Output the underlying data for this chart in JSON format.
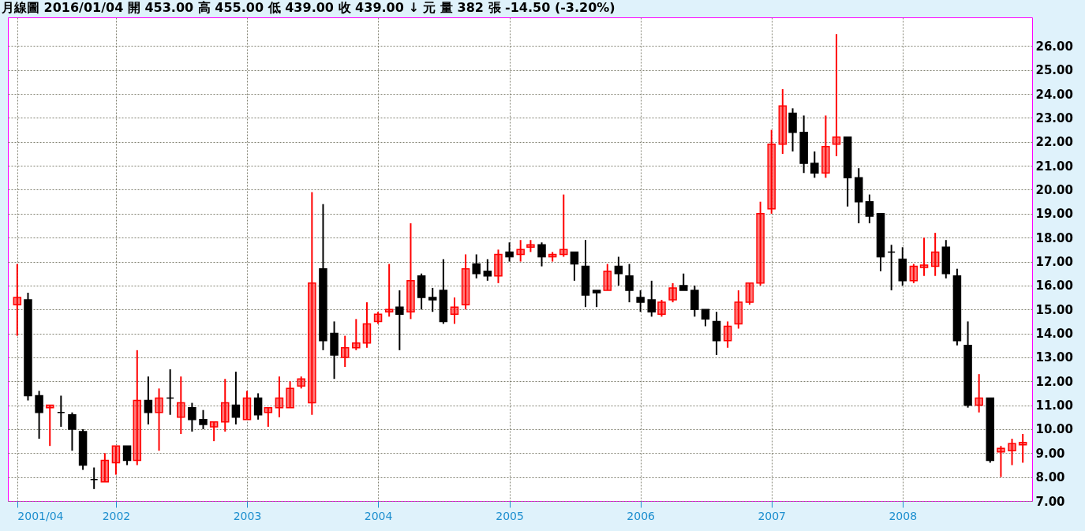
{
  "chart_data": {
    "type": "candlestick",
    "title": "月線圖  2016/01/04  開 453.00  高 455.00  低 439.00  收 439.00 ↓ 元  量 382 張  -14.50 (-3.20%)",
    "x": [
      "2001-04",
      "2001-05",
      "2001-06",
      "2001-07",
      "2001-08",
      "2001-09",
      "2001-10",
      "2001-11",
      "2001-12",
      "2002-01",
      "2002-02",
      "2002-03",
      "2002-04",
      "2002-05",
      "2002-06",
      "2002-07",
      "2002-08",
      "2002-09",
      "2002-10",
      "2002-11",
      "2002-12",
      "2003-01",
      "2003-02",
      "2003-03",
      "2003-04",
      "2003-05",
      "2003-06",
      "2003-07",
      "2003-08",
      "2003-09",
      "2003-10",
      "2003-11",
      "2003-12",
      "2004-01",
      "2004-02",
      "2004-03",
      "2004-04",
      "2004-05",
      "2004-06",
      "2004-07",
      "2004-08",
      "2004-09",
      "2004-10",
      "2004-11",
      "2004-12",
      "2005-01",
      "2005-02",
      "2005-03",
      "2005-04",
      "2005-05",
      "2005-06",
      "2005-07",
      "2005-08",
      "2005-09",
      "2005-10",
      "2005-11",
      "2005-12",
      "2006-01",
      "2006-02",
      "2006-03",
      "2006-04",
      "2006-05",
      "2006-06",
      "2006-07",
      "2006-08",
      "2006-09",
      "2006-10",
      "2006-11",
      "2006-12",
      "2007-01",
      "2007-02",
      "2007-03",
      "2007-04",
      "2007-05",
      "2007-06",
      "2007-07",
      "2007-08",
      "2007-09",
      "2007-10",
      "2007-11",
      "2007-12",
      "2008-01",
      "2008-02",
      "2008-03",
      "2008-04",
      "2008-05",
      "2008-06",
      "2008-07",
      "2008-08",
      "2008-09",
      "2008-10",
      "2008-11",
      "2008-12"
    ],
    "ohlc": [
      [
        15.2,
        16.9,
        13.9,
        15.5
      ],
      [
        15.4,
        15.7,
        11.2,
        11.4
      ],
      [
        11.4,
        11.6,
        9.6,
        10.7
      ],
      [
        10.9,
        11.0,
        9.3,
        11.0
      ],
      [
        10.7,
        11.4,
        10.1,
        10.7
      ],
      [
        10.6,
        10.7,
        9.1,
        10.0
      ],
      [
        9.9,
        10.0,
        8.3,
        8.5
      ],
      [
        7.9,
        8.4,
        7.5,
        7.9
      ],
      [
        7.8,
        9.0,
        7.8,
        8.7
      ],
      [
        8.6,
        9.3,
        8.1,
        9.3
      ],
      [
        9.3,
        9.3,
        8.5,
        8.7
      ],
      [
        8.7,
        13.3,
        8.5,
        11.2
      ],
      [
        11.2,
        12.2,
        10.2,
        10.7
      ],
      [
        10.7,
        11.7,
        9.1,
        11.3
      ],
      [
        11.3,
        12.5,
        10.6,
        11.3
      ],
      [
        10.5,
        12.2,
        9.8,
        11.1
      ],
      [
        10.9,
        11.1,
        9.9,
        10.4
      ],
      [
        10.4,
        10.8,
        10.0,
        10.2
      ],
      [
        10.1,
        10.3,
        9.5,
        10.3
      ],
      [
        10.3,
        12.1,
        9.9,
        11.1
      ],
      [
        11.0,
        12.4,
        10.2,
        10.5
      ],
      [
        10.4,
        11.6,
        10.4,
        11.3
      ],
      [
        11.3,
        11.5,
        10.4,
        10.6
      ],
      [
        10.7,
        10.9,
        10.1,
        10.9
      ],
      [
        10.9,
        12.2,
        10.5,
        11.3
      ],
      [
        10.9,
        12.0,
        10.9,
        11.7
      ],
      [
        11.8,
        12.2,
        11.7,
        12.1
      ],
      [
        11.1,
        19.9,
        10.6,
        16.1
      ],
      [
        16.7,
        19.4,
        13.3,
        13.7
      ],
      [
        14.0,
        14.5,
        12.1,
        13.1
      ],
      [
        13.0,
        13.9,
        12.6,
        13.4
      ],
      [
        13.4,
        14.6,
        13.3,
        13.6
      ],
      [
        13.6,
        15.3,
        13.4,
        14.4
      ],
      [
        14.5,
        14.9,
        14.4,
        14.8
      ],
      [
        14.9,
        16.9,
        14.7,
        15.0
      ],
      [
        15.1,
        15.8,
        13.3,
        14.8
      ],
      [
        14.9,
        18.6,
        14.6,
        16.2
      ],
      [
        16.4,
        16.5,
        15.0,
        15.5
      ],
      [
        15.5,
        15.9,
        14.9,
        15.4
      ],
      [
        15.8,
        17.1,
        14.4,
        14.5
      ],
      [
        14.8,
        15.5,
        14.4,
        15.1
      ],
      [
        15.2,
        17.3,
        15.0,
        16.7
      ],
      [
        16.9,
        17.3,
        16.3,
        16.5
      ],
      [
        16.6,
        17.1,
        16.2,
        16.4
      ],
      [
        16.4,
        17.5,
        16.1,
        17.3
      ],
      [
        17.4,
        17.8,
        17.0,
        17.2
      ],
      [
        17.3,
        17.9,
        17.0,
        17.5
      ],
      [
        17.6,
        17.9,
        17.4,
        17.7
      ],
      [
        17.7,
        17.8,
        16.8,
        17.2
      ],
      [
        17.2,
        17.4,
        17.0,
        17.3
      ],
      [
        17.3,
        19.8,
        17.2,
        17.5
      ],
      [
        17.4,
        17.4,
        16.2,
        16.9
      ],
      [
        16.8,
        17.9,
        15.1,
        15.6
      ],
      [
        15.8,
        15.8,
        15.1,
        15.7
      ],
      [
        15.8,
        16.9,
        15.8,
        16.6
      ],
      [
        16.8,
        17.2,
        16.0,
        16.5
      ],
      [
        16.4,
        16.9,
        15.3,
        15.8
      ],
      [
        15.5,
        15.8,
        14.9,
        15.3
      ],
      [
        15.4,
        16.2,
        14.7,
        14.9
      ],
      [
        14.8,
        15.4,
        14.7,
        15.3
      ],
      [
        15.4,
        16.1,
        15.3,
        15.9
      ],
      [
        16.0,
        16.5,
        15.8,
        15.8
      ],
      [
        15.8,
        16.0,
        14.7,
        15.0
      ],
      [
        15.0,
        15.0,
        14.3,
        14.6
      ],
      [
        14.5,
        14.9,
        13.1,
        13.7
      ],
      [
        13.7,
        14.5,
        13.4,
        14.3
      ],
      [
        14.4,
        15.8,
        14.2,
        15.3
      ],
      [
        15.3,
        16.1,
        15.2,
        16.1
      ],
      [
        16.1,
        19.5,
        16.0,
        19.0
      ],
      [
        19.2,
        22.5,
        19.0,
        21.9
      ],
      [
        21.9,
        24.2,
        21.5,
        23.5
      ],
      [
        23.2,
        23.4,
        21.6,
        22.4
      ],
      [
        22.4,
        23.1,
        20.7,
        21.1
      ],
      [
        21.1,
        21.6,
        20.5,
        20.7
      ],
      [
        20.7,
        23.1,
        20.5,
        21.8
      ],
      [
        21.9,
        26.5,
        21.4,
        22.2
      ],
      [
        22.2,
        22.2,
        19.3,
        20.5
      ],
      [
        20.5,
        20.9,
        18.6,
        19.5
      ],
      [
        19.5,
        19.8,
        18.6,
        18.9
      ],
      [
        19.0,
        19.0,
        16.6,
        17.2
      ],
      [
        17.4,
        17.7,
        15.8,
        17.4
      ],
      [
        17.1,
        17.6,
        16.0,
        16.2
      ],
      [
        16.2,
        16.9,
        16.1,
        16.8
      ],
      [
        16.75,
        18.0,
        16.4,
        16.85
      ],
      [
        16.8,
        18.2,
        16.4,
        17.4
      ],
      [
        17.6,
        17.9,
        16.3,
        16.5
      ],
      [
        16.4,
        16.7,
        13.5,
        13.7
      ],
      [
        13.5,
        14.5,
        10.9,
        11.0
      ],
      [
        11.0,
        12.3,
        10.7,
        11.3
      ],
      [
        11.3,
        11.3,
        8.6,
        8.7
      ],
      [
        9.05,
        9.3,
        8.0,
        9.2
      ],
      [
        9.1,
        9.6,
        8.5,
        9.4
      ],
      [
        9.35,
        9.8,
        8.6,
        9.45
      ]
    ],
    "colors": [
      "#ff0000",
      "#000000",
      "#000000",
      "#ff0000",
      "#000000",
      "#000000",
      "#000000",
      "#000000",
      "#ff0000",
      "#ff0000",
      "#000000",
      "#ff0000",
      "#000000",
      "#ff0000",
      "#000000",
      "#ff0000",
      "#000000",
      "#000000",
      "#ff0000",
      "#ff0000",
      "#000000",
      "#ff0000",
      "#000000",
      "#ff0000",
      "#ff0000",
      "#ff0000",
      "#ff0000",
      "#ff0000",
      "#000000",
      "#000000",
      "#ff0000",
      "#ff0000",
      "#ff0000",
      "#ff0000",
      "#ff0000",
      "#000000",
      "#ff0000",
      "#000000",
      "#000000",
      "#000000",
      "#ff0000",
      "#ff0000",
      "#000000",
      "#000000",
      "#ff0000",
      "#000000",
      "#ff0000",
      "#ff0000",
      "#000000",
      "#ff0000",
      "#ff0000",
      "#000000",
      "#000000",
      "#000000",
      "#ff0000",
      "#000000",
      "#000000",
      "#000000",
      "#000000",
      "#ff0000",
      "#ff0000",
      "#000000",
      "#000000",
      "#000000",
      "#000000",
      "#ff0000",
      "#ff0000",
      "#ff0000",
      "#ff0000",
      "#ff0000",
      "#ff0000",
      "#000000",
      "#000000",
      "#000000",
      "#ff0000",
      "#ff0000",
      "#000000",
      "#000000",
      "#000000",
      "#000000",
      "#000000",
      "#000000",
      "#ff0000",
      "#ff0000",
      "#ff0000",
      "#000000",
      "#000000",
      "#000000",
      "#ff0000",
      "#000000",
      "#ff0000",
      "#ff0000",
      "#ff0000"
    ],
    "xlim": [
      "2001-03-17",
      "2008-12-16"
    ],
    "xticks": [
      {
        "value": "2001-04",
        "label": "2001/04"
      },
      "2002",
      "2003",
      "2004",
      "2005",
      "2006",
      "2007",
      "2008"
    ],
    "ylim": [
      7,
      27.2
    ],
    "yticks": [
      {
        "value": 7,
        "label": "7.00"
      },
      {
        "value": 8,
        "label": "8.00"
      },
      {
        "value": 9,
        "label": "9.00"
      },
      {
        "value": 10,
        "label": "10.00"
      },
      {
        "value": 11,
        "label": "11.00"
      },
      {
        "value": 12,
        "label": "12.00"
      },
      {
        "value": 13,
        "label": "13.00"
      },
      {
        "value": 14,
        "label": "14.00"
      },
      {
        "value": 15,
        "label": "15.00"
      },
      {
        "value": 16,
        "label": "16.00"
      },
      {
        "value": 17,
        "label": "17.00"
      },
      {
        "value": 18,
        "label": "18.00"
      },
      {
        "value": 19,
        "label": "19.00"
      },
      {
        "value": 20,
        "label": "20.00"
      },
      {
        "value": 21,
        "label": "21.00"
      },
      {
        "value": 22,
        "label": "22.00"
      },
      {
        "value": 23,
        "label": "23.00"
      },
      {
        "value": 24,
        "label": "24.00"
      },
      {
        "value": 25,
        "label": "25.00"
      },
      {
        "value": 26,
        "label": "26.00"
      }
    ],
    "grid": true
  }
}
